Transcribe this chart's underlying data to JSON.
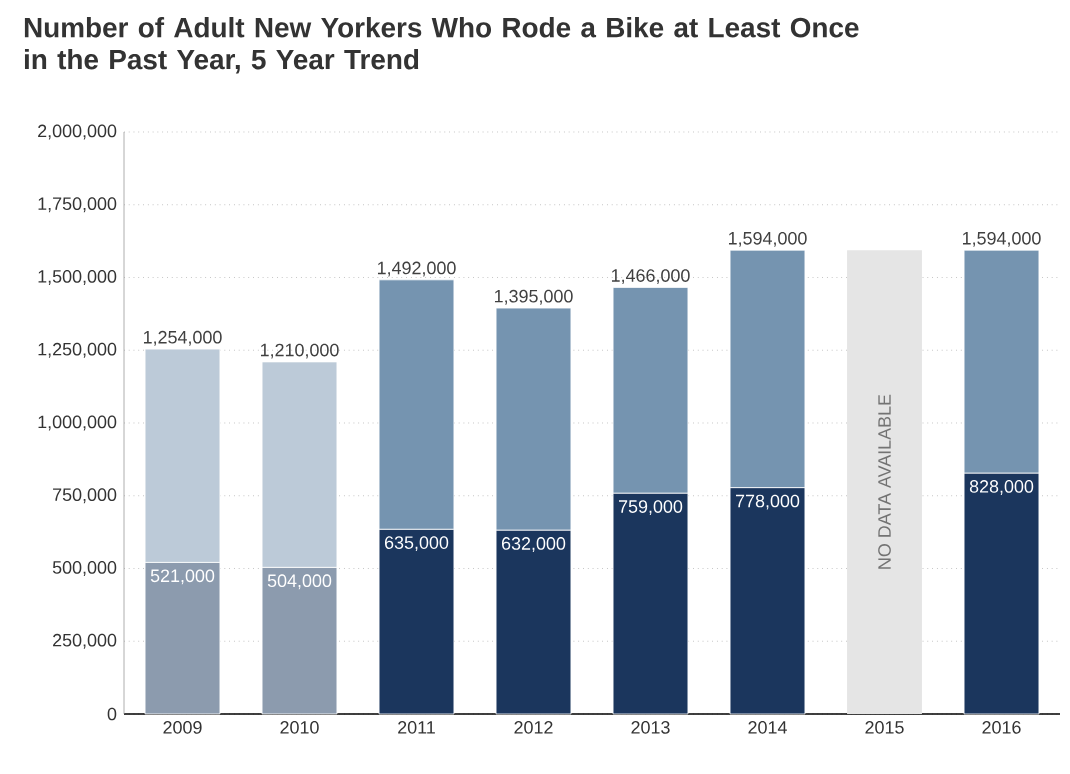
{
  "chart_data": {
    "type": "bar",
    "stacked": true,
    "title": "Number of Adult New Yorkers Who Rode a Bike at Least Once in the Past Year, 5 Year Trend",
    "categories": [
      "2009",
      "2010",
      "2011",
      "2012",
      "2013",
      "2014",
      "2015",
      "2016"
    ],
    "series": [
      {
        "colors": [
          "#8c9bae",
          "#8c9bae",
          "#1b365d",
          "#1b365d",
          "#1b365d",
          "#1b365d",
          "#1b365d",
          "#1b365d"
        ],
        "values": [
          521000,
          504000,
          635000,
          632000,
          759000,
          778000,
          null,
          828000
        ],
        "value_labels": [
          "521,000",
          "504,000",
          "635,000",
          "632,000",
          "759,000",
          "778,000",
          null,
          "828,000"
        ]
      },
      {
        "colors": [
          "#bccad8",
          "#bccad8",
          "#7594b0",
          "#7594b0",
          "#7594b0",
          "#7594b0",
          "#7594b0",
          "#7594b0"
        ],
        "values": [
          733000,
          706000,
          857000,
          763000,
          707000,
          816000,
          null,
          766000
        ]
      }
    ],
    "totals": [
      "1,254,000",
      "1,210,000",
      "1,492,000",
      "1,395,000",
      "1,466,000",
      "1,594,000",
      null,
      "1,594,000"
    ],
    "bands": [
      {
        "axis": "x",
        "from": "2015",
        "to": "2015",
        "label": "NO DATA AVAILABLE",
        "color": "#e5e5e5"
      }
    ],
    "ylim": [
      0,
      2000000
    ],
    "yticks": [
      {
        "value": 0,
        "label": "0"
      },
      {
        "value": 250000,
        "label": "250,000"
      },
      {
        "value": 500000,
        "label": "500,000"
      },
      {
        "value": 750000,
        "label": "750,000"
      },
      {
        "value": 1000000,
        "label": "1,000,000"
      },
      {
        "value": 1250000,
        "label": "1,250,000"
      },
      {
        "value": 1500000,
        "label": "1,500,000"
      },
      {
        "value": 1750000,
        "label": "1,750,000"
      },
      {
        "value": 2000000,
        "label": "2,000,000"
      }
    ],
    "grid": "y"
  }
}
